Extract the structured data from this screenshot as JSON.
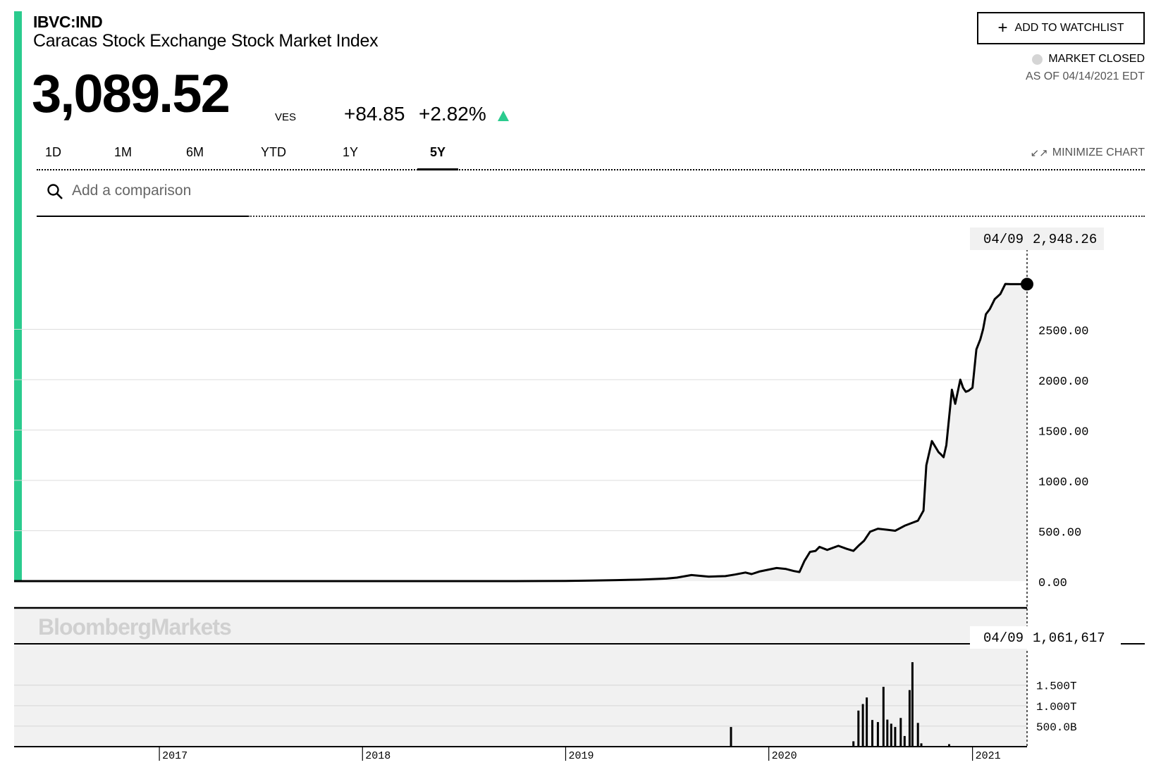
{
  "header": {
    "ticker": "IBVC:IND",
    "name": "Caracas Stock Exchange Stock Market Index",
    "price": "3,089.52",
    "currency": "VES",
    "change": "+84.85",
    "change_pct": "+2.82%"
  },
  "watchlist_label": "ADD TO WATCHLIST",
  "status": {
    "market": "MARKET CLOSED",
    "as_of": "AS OF 04/14/2021 EDT"
  },
  "tabs": [
    {
      "label": "1D",
      "active": false
    },
    {
      "label": "1M",
      "active": false
    },
    {
      "label": "6M",
      "active": false
    },
    {
      "label": "YTD",
      "active": false
    },
    {
      "label": "1Y",
      "active": false
    },
    {
      "label": "5Y",
      "active": true
    }
  ],
  "minimize_label": "MINIMIZE CHART",
  "search": {
    "placeholder": "Add a comparison"
  },
  "colors": {
    "accent": "#2bcb8e",
    "up": "#2bcb8e",
    "area_fill": "#f1f1f1"
  },
  "icons": {
    "search": "search-icon",
    "plus": "plus-icon",
    "minimize": "minimize-icon",
    "arrow": "up-arrow-icon"
  },
  "chart_data": {
    "type": "line",
    "watermark": "BloombergMarkets",
    "x_ticks": [
      "2017",
      "2018",
      "2019",
      "2020",
      "2021"
    ],
    "y_ticks": [
      "2500.00",
      "2000.00",
      "1500.00",
      "1000.00",
      "500.00",
      "0.00"
    ],
    "ylim": [
      -350,
      3500
    ],
    "grid": true,
    "hover": {
      "date": "04/09",
      "value": "2,948.26",
      "volume": "1,061,617"
    },
    "price": {
      "x": [
        "2016-04-15",
        "2016-07-01",
        "2016-10-01",
        "2017-01-01",
        "2017-04-01",
        "2017-07-01",
        "2017-10-01",
        "2018-01-01",
        "2018-04-01",
        "2018-07-01",
        "2018-10-01",
        "2019-01-01",
        "2019-02-15",
        "2019-04-01",
        "2019-05-15",
        "2019-07-01",
        "2019-07-20",
        "2019-08-15",
        "2019-09-15",
        "2019-10-15",
        "2019-11-01",
        "2019-11-20",
        "2019-12-01",
        "2019-12-15",
        "2020-01-15",
        "2020-02-01",
        "2020-02-15",
        "2020-02-25",
        "2020-03-05",
        "2020-03-15",
        "2020-03-25",
        "2020-04-01",
        "2020-04-15",
        "2020-05-05",
        "2020-05-20",
        "2020-06-01",
        "2020-06-10",
        "2020-06-20",
        "2020-07-01",
        "2020-07-15",
        "2020-08-01",
        "2020-08-15",
        "2020-09-01",
        "2020-09-15",
        "2020-09-25",
        "2020-10-05",
        "2020-10-10",
        "2020-10-20",
        "2020-11-01",
        "2020-11-05",
        "2020-11-10",
        "2020-11-15",
        "2020-11-25",
        "2020-12-01",
        "2020-12-10",
        "2020-12-15",
        "2020-12-20",
        "2020-12-25",
        "2021-01-01",
        "2021-01-08",
        "2021-01-15",
        "2021-01-20",
        "2021-01-25",
        "2021-02-01",
        "2021-02-10",
        "2021-02-20",
        "2021-03-01",
        "2021-03-10",
        "2021-03-20",
        "2021-04-01",
        "2021-04-09"
      ],
      "y": [
        0,
        0,
        0,
        0,
        0,
        0,
        0,
        0,
        0,
        0,
        0,
        2,
        5,
        10,
        15,
        25,
        35,
        60,
        45,
        50,
        65,
        85,
        70,
        95,
        130,
        120,
        100,
        90,
        200,
        290,
        300,
        340,
        310,
        350,
        320,
        300,
        350,
        400,
        490,
        520,
        510,
        500,
        550,
        580,
        600,
        700,
        1150,
        1390,
        1280,
        1260,
        1230,
        1350,
        1900,
        1760,
        2000,
        1920,
        1880,
        1890,
        1920,
        2300,
        2400,
        2500,
        2650,
        2700,
        2800,
        2850,
        2950,
        2948,
        2948,
        2948,
        2948
      ]
    },
    "volume": {
      "y_ticks": [
        "1.500T",
        "1.000T",
        "500.0B"
      ],
      "ylim": [
        0,
        2200
      ],
      "x": [
        "2019-10-25",
        "2020-06-01",
        "2020-06-10",
        "2020-06-18",
        "2020-06-25",
        "2020-07-05",
        "2020-07-15",
        "2020-07-25",
        "2020-08-01",
        "2020-08-08",
        "2020-08-15",
        "2020-08-25",
        "2020-09-01",
        "2020-09-10",
        "2020-09-15",
        "2020-09-25",
        "2020-10-01",
        "2020-11-20"
      ],
      "values": [
        480,
        130,
        880,
        1040,
        1200,
        650,
        600,
        1460,
        660,
        560,
        480,
        700,
        260,
        1380,
        2060,
        580,
        80,
        60
      ]
    }
  }
}
